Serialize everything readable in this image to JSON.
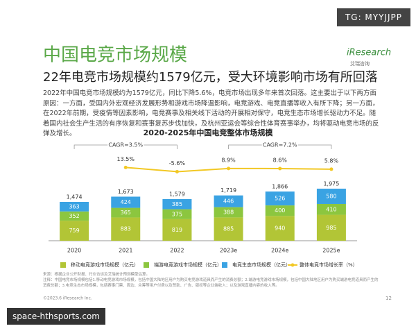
{
  "header": {
    "title": "中国电竞市场规模",
    "subtitle": "22年电竞市场规模约1579亿元，受大环境影响市场有所回落",
    "logo": "iResearch",
    "logo_sub": "艾瑞咨询"
  },
  "watermark": "TG: MYYJJPP",
  "body": "2022年中国电竞市场规模约为1579亿元，同比下降5.6%，电竞市场出现多年来首次回落。这主要出于以下两方面原因：一方面，受国内外宏观经济发展形势和游戏市场降温影响，电竞游戏、电竞直播等收入有所下降；另一方面，在2022年前期，受疫情等因素影响，电竞赛事及相关线下活动的开展相对保守，电竞生态市场增长驱动力不足。随着国内社会生产生活的有序恢复和赛事复苏步伐加快，及杭州亚运会等综合性体育赛事举办，均将驱动电竞市场的反弹及增长。",
  "chart_data": {
    "type": "bar",
    "stacked": true,
    "title": "2020-2025年中国电竞整体市场规模",
    "categories": [
      "2020",
      "2021",
      "2022",
      "2023e",
      "2024e",
      "2025e"
    ],
    "series": [
      {
        "name": "移动电竞游戏市场规模（亿元）",
        "color": "#b2c536",
        "values": [
          759,
          883,
          819,
          885,
          940,
          985
        ]
      },
      {
        "name": "端游电竞游戏市场规模（亿元）",
        "color": "#8cc63f",
        "values": [
          352,
          365,
          375,
          388,
          400,
          410
        ]
      },
      {
        "name": "电竞生态市场规模（亿元）",
        "color": "#3aa3e3",
        "values": [
          363,
          424,
          385,
          446,
          526,
          580
        ]
      },
      {
        "name": "整体电竞市场增长率（%）",
        "type": "line",
        "axis": "y2",
        "color": "#f2c824",
        "values": [
          null,
          13.5,
          -5.6,
          8.9,
          8.6,
          5.8
        ],
        "value_labels": [
          null,
          "13.5%",
          "-5.6%",
          "8.9%",
          "8.6%",
          "5.8%"
        ]
      }
    ],
    "totals": [
      {
        "value": 1474,
        "label": "1,474"
      },
      {
        "value": 1673,
        "label": "1,673"
      },
      {
        "value": 1579,
        "label": "1,579"
      },
      {
        "value": 1719,
        "label": "1,719"
      },
      {
        "value": 1866,
        "label": "1,866"
      },
      {
        "value": 1975,
        "label": "1,975"
      }
    ],
    "annotations": [
      "CAGR=3.5%",
      "CAGR=7.2%"
    ],
    "ylim": [
      0,
      4000
    ],
    "y2lim": [
      -320,
      160
    ]
  },
  "footer": {
    "source": "来源：根据企业公开财报、行业访谈及艾瑞统计预测模型估算。",
    "note": "注释：中国电竞市场规模包括1.移动电竞游戏市场规模，包括中国大陆地区用户为购买电竞游戏道具而产生的消费总额；2.端游电竞游戏市场规模，包括中国大陆地区用户为购买端游电竞道具而产生的消费总额；3.电竞生态市场规模，包括赛事门票、周边、众筹等用户付费以及赞助、广告、版权等企业端收入；以及游戏直播内容的收入等。",
    "copyright": "©2023.6 iResearch Inc.",
    "page": "12",
    "site": "space-hthsports.com"
  }
}
